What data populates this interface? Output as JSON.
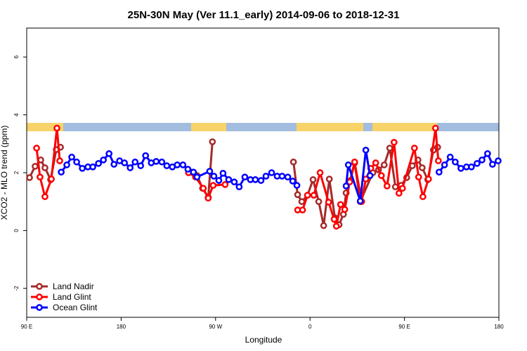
{
  "chart_data": {
    "type": "line",
    "title": "25N-30N May (Ver 11.1_early)   2014-09-06 to 2018-12-31",
    "xlabel": "Longitude",
    "ylabel": "XCO2 - MLO trend (ppm)",
    "xlim": [
      90,
      540
    ],
    "ylim": [
      -3,
      7
    ],
    "xticks": [
      {
        "value": 90,
        "label": "90 E"
      },
      180,
      {
        "value": 270,
        "label": "90 W"
      },
      {
        "value": 360,
        "label": "0"
      },
      {
        "value": 450,
        "label": "90 E"
      },
      {
        "value": 540,
        "label": "180"
      }
    ],
    "yticks": [
      -2,
      0,
      2,
      4,
      6
    ],
    "legend": "bottom-left",
    "series": [
      {
        "name": "Land Nadir",
        "color": "#a52a2a",
        "x": [
          92.7,
          98.0,
          103.4,
          107.4,
          112.8,
          118.2,
          122.2,
          null,
          246.9,
          252.3,
          257.6,
          263.0,
          267.0,
          null,
          344.2,
          348.2,
          352.2,
          357.6,
          362.9,
          368.3,
          373.0,
          378.4,
          383.7,
          387.7,
          391.8,
          394.4,
          398.5,
          402.5,
          407.9,
          419.9,
          425.3,
          430.7,
          436.0,
          441.4,
          446.8,
          452.1,
          457.5,
          462.9,
          466.9,
          472.2,
          477.6,
          481.6
        ],
        "values": [
          1.83,
          2.22,
          2.44,
          2.17,
          1.76,
          2.8,
          2.88,
          null,
          2.02,
          1.9,
          1.46,
          1.15,
          3.07,
          null,
          2.37,
          1.24,
          1.0,
          1.22,
          1.76,
          1.0,
          0.17,
          1.78,
          0.44,
          0.2,
          0.56,
          1.3,
          1.73,
          2.34,
          1.0,
          2.0,
          2.1,
          2.27,
          2.85,
          1.51,
          1.56,
          1.83,
          2.24,
          2.44,
          2.17,
          1.76,
          2.78,
          2.88
        ]
      },
      {
        "name": "Land Glint",
        "color": "#ff0000",
        "x": [
          99.4,
          102.7,
          107.4,
          113.5,
          118.8,
          121.5,
          null,
          244.2,
          250.9,
          258.3,
          263.0,
          267.7,
          279.1,
          null,
          348.2,
          352.9,
          357.6,
          363.6,
          369.6,
          377.7,
          383.0,
          385.1,
          389.1,
          393.1,
          397.8,
          402.5,
          409.2,
          413.2,
          417.9,
          422.6,
          428.0,
          433.4,
          440.1,
          444.8,
          448.1,
          459.5,
          463.5,
          467.6,
          472.9,
          479.6,
          482.3
        ],
        "values": [
          2.85,
          1.85,
          1.17,
          1.78,
          3.54,
          2.41,
          null,
          2.0,
          1.85,
          1.46,
          1.12,
          1.56,
          1.59,
          null,
          0.71,
          0.71,
          1.22,
          1.22,
          2.0,
          0.98,
          0.39,
          0.15,
          0.9,
          0.73,
          1.68,
          2.37,
          1.0,
          1.78,
          2.15,
          2.34,
          1.9,
          1.54,
          3.05,
          1.29,
          1.46,
          2.85,
          1.85,
          1.17,
          1.78,
          3.54,
          2.41
        ]
      },
      {
        "name": "Ocean Glint",
        "color": "#0000ff",
        "x": [
          122.9,
          128.2,
          132.9,
          137.6,
          143.0,
          148.3,
          153.0,
          158.4,
          163.1,
          168.5,
          173.2,
          178.5,
          183.2,
          188.6,
          193.3,
          198.6,
          203.3,
          208.7,
          213.4,
          218.8,
          223.5,
          228.8,
          233.5,
          238.9,
          243.6,
          248.9,
          252.3,
          264.4,
          268.4,
          273.1,
          277.1,
          282.5,
          287.8,
          292.5,
          297.9,
          303.2,
          307.9,
          313.3,
          318.0,
          323.4,
          328.7,
          333.4,
          338.8,
          343.5,
          347.5,
          null,
          394.4,
          396.5,
          407.9,
          413.2,
          417.2,
          null,
          483.0,
          488.2,
          493.6,
          498.4,
          503.8,
          509.1,
          513.8,
          519.2,
          523.9,
          529.2,
          533.9,
          539.3
        ],
        "values": [
          2.02,
          2.27,
          2.54,
          2.37,
          2.15,
          2.2,
          2.2,
          2.32,
          2.44,
          2.66,
          2.29,
          2.41,
          2.34,
          2.17,
          2.37,
          2.24,
          2.59,
          2.34,
          2.39,
          2.37,
          2.24,
          2.2,
          2.27,
          2.27,
          2.12,
          2.02,
          1.85,
          2.05,
          1.88,
          1.73,
          1.98,
          1.76,
          1.68,
          1.51,
          1.85,
          1.76,
          1.76,
          1.73,
          1.88,
          2.0,
          1.88,
          1.88,
          1.85,
          1.71,
          1.56,
          null,
          1.54,
          2.27,
          1.02,
          2.78,
          1.9,
          null,
          2.02,
          2.27,
          2.54,
          2.37,
          2.15,
          2.2,
          2.2,
          2.32,
          2.44,
          2.66,
          2.29,
          2.41
        ]
      }
    ]
  }
}
